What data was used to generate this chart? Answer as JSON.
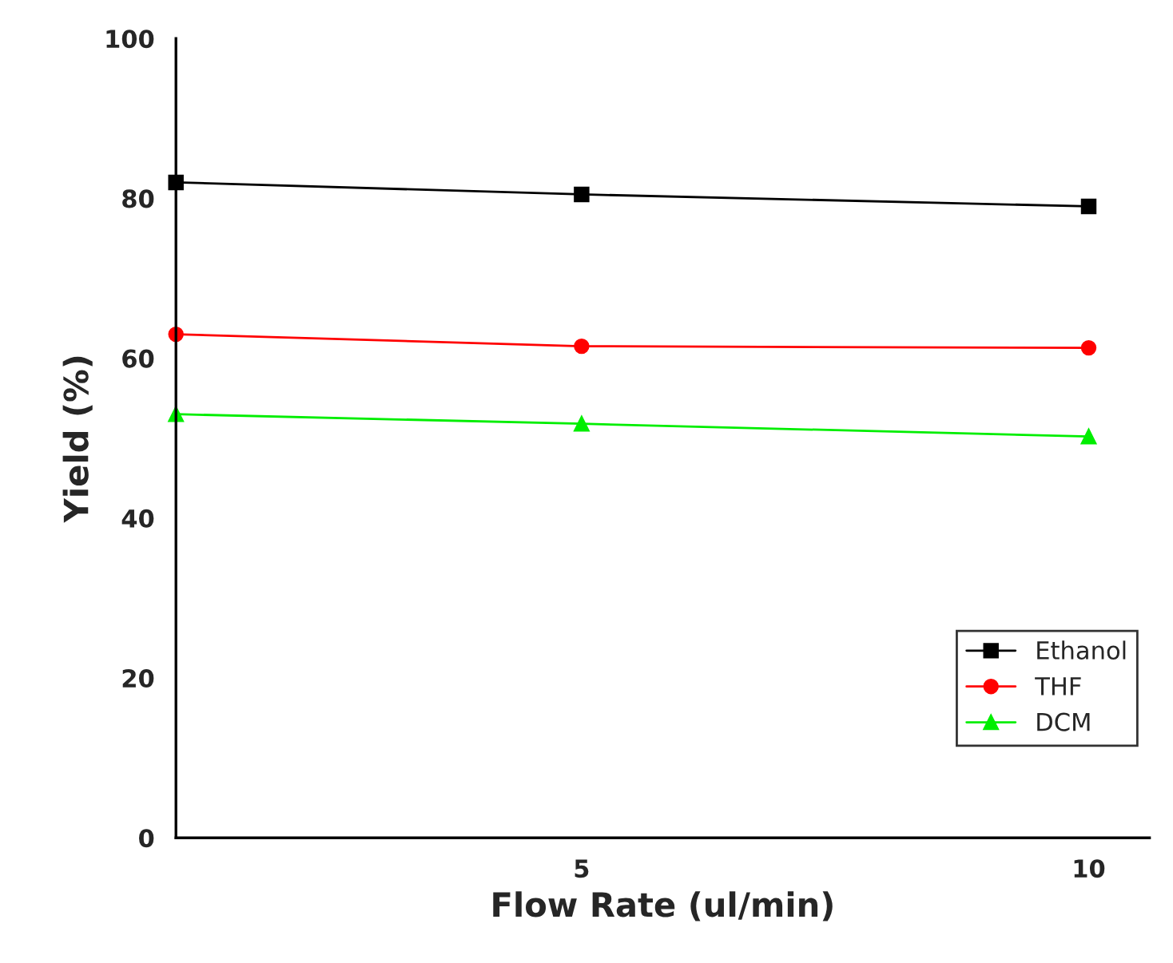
{
  "chart_data": {
    "type": "line",
    "xlabel": "Flow Rate (ul/min)",
    "ylabel": "Yield (%)",
    "x": [
      1,
      5,
      10
    ],
    "series": [
      {
        "name": "Ethanol",
        "color": "#000000",
        "marker": "square",
        "values": [
          82,
          80.5,
          79
        ]
      },
      {
        "name": "THF",
        "color": "#ff0000",
        "marker": "circle",
        "values": [
          63,
          61.5,
          61.3
        ]
      },
      {
        "name": "DCM",
        "color": "#00ee00",
        "marker": "triangle",
        "values": [
          53,
          51.8,
          50.2
        ]
      }
    ],
    "xlim": [
      1,
      10.6
    ],
    "xticks": [
      5,
      10
    ],
    "ylim": [
      0,
      100
    ],
    "yticks": [
      0,
      20,
      40,
      60,
      80,
      100
    ],
    "grid": false,
    "legend": "bottom right",
    "line_style": "solid"
  }
}
